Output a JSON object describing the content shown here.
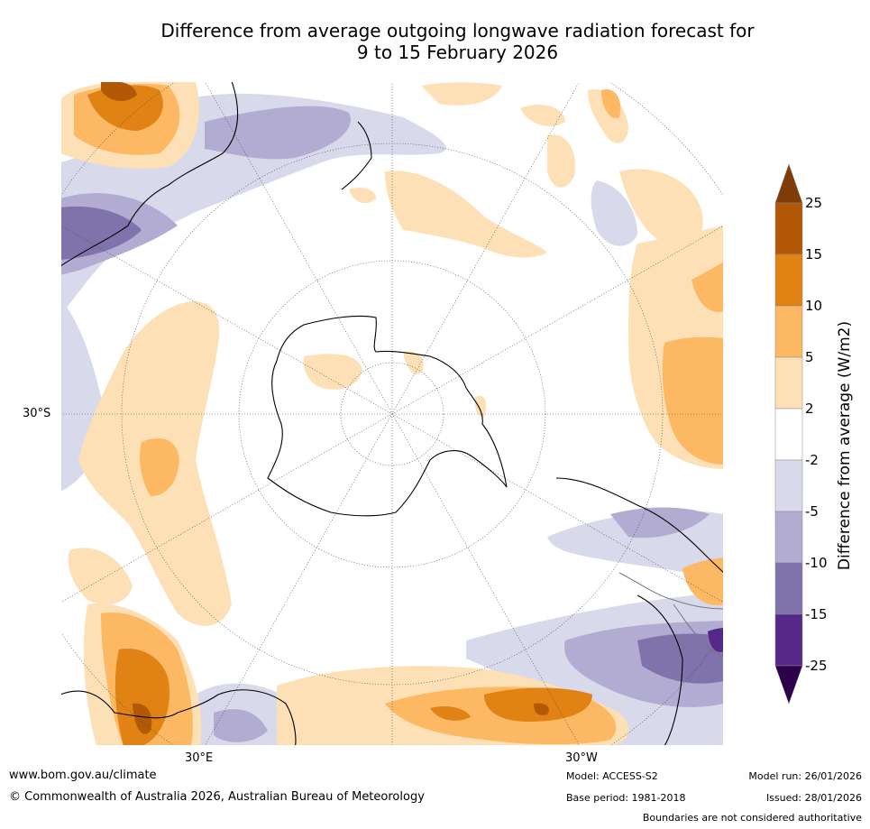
{
  "title": {
    "line1": "Difference from average outgoing longwave radiation forecast for",
    "line2": "9 to 15 February 2026"
  },
  "map": {
    "projection": "south polar stereographic",
    "lat_label": "30°S",
    "lon_labels": {
      "east": "30°E",
      "west": "30°W"
    }
  },
  "colorbar": {
    "label": "Difference from average (W/m2)",
    "ticks": [
      "25",
      "15",
      "10",
      "5",
      "2",
      "-2",
      "-5",
      "-10",
      "-15",
      "-25"
    ],
    "colors": [
      "#7f3b08",
      "#b35806",
      "#e08214",
      "#fdb863",
      "#fee0b6",
      "#ffffff",
      "#d8daeb",
      "#b2abd2",
      "#8073ac",
      "#542788",
      "#2d004b"
    ]
  },
  "footer": {
    "url": "www.bom.gov.au/climate",
    "copyright": "© Commonwealth of Australia 2026, Australian Bureau of Meteorology",
    "model": "Model: ACCESS-S2",
    "base_period": "Base period: 1981-2018",
    "model_run": "Model run: 26/01/2026",
    "issued": "Issued: 28/01/2026",
    "disclaimer": "Boundaries are not considered authoritative"
  }
}
